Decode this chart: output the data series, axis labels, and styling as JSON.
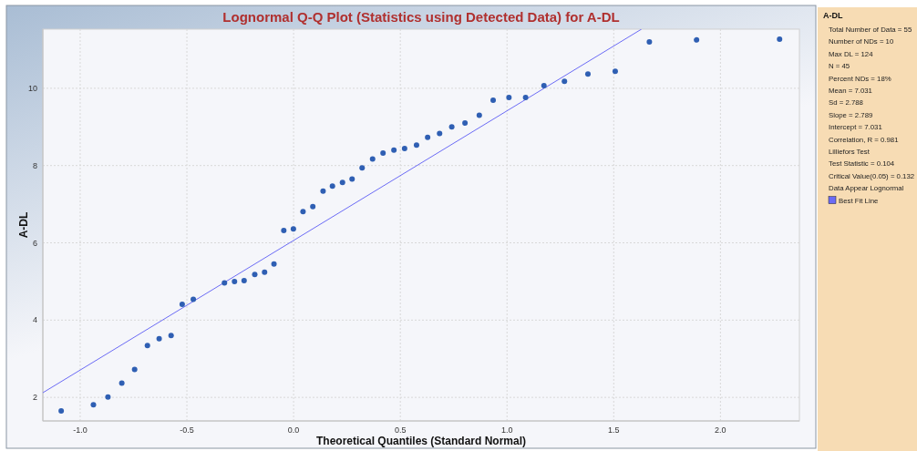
{
  "chart_data": {
    "type": "scatter",
    "title": "Lognormal Q-Q Plot (Statistics using Detected Data) for A-DL",
    "xlabel": "Theoretical Quantiles (Standard Normal)",
    "ylabel": "A-DL",
    "legend_title": "A-DL",
    "annotations": [
      "Total Number of Data = 55",
      "Number of NDs = 10",
      "Max DL = 124",
      "N = 45",
      "Percent NDs = 18%",
      "Mean = 7.031",
      "Sd = 2.788",
      "Slope = 2.789",
      "Intercept = 7.031",
      "Correlation, R = 0.981",
      "Lilliefors Test",
      "Test Statistic = 0.104",
      "Critical Value(0.05) = 0.132",
      "Data Appear Lognormal"
    ],
    "xlim": [
      -1.175,
      2.37
    ],
    "ylim": [
      1.39,
      11.53
    ],
    "xticks": [
      {
        "value": -1,
        "label": "-1.0"
      },
      {
        "value": -0.5,
        "label": "-0.5"
      },
      {
        "value": 0,
        "label": "0.0"
      },
      {
        "value": 0.5,
        "label": "0.5"
      },
      {
        "value": 1,
        "label": "1.0"
      },
      {
        "value": 1.5,
        "label": "1.5"
      },
      {
        "value": 2,
        "label": "2.0"
      }
    ],
    "yticks": [
      2,
      4,
      6,
      8,
      10
    ],
    "grid": true,
    "legend": "right",
    "series": [
      {
        "marker": "circle",
        "color": "#2f5fb3",
        "x": [
          -1.089,
          -0.938,
          -0.87,
          -0.805,
          -0.745,
          -0.685,
          -0.63,
          -0.574,
          -0.522,
          -0.47,
          -0.324,
          -0.277,
          -0.232,
          -0.182,
          -0.136,
          -0.092,
          -0.046,
          -0.001,
          0.044,
          0.09,
          0.138,
          0.182,
          0.229,
          0.274,
          0.321,
          0.37,
          0.419,
          0.47,
          0.52,
          0.576,
          0.628,
          0.684,
          0.741,
          0.803,
          0.87,
          0.935,
          1.009,
          1.087,
          1.173,
          1.269,
          1.379,
          1.507,
          1.667,
          1.888,
          2.277
        ],
        "values": [
          1.65,
          1.81,
          2.01,
          2.37,
          2.72,
          3.34,
          3.52,
          3.6,
          4.41,
          4.54,
          4.96,
          5.0,
          5.02,
          5.18,
          5.24,
          5.45,
          6.32,
          6.36,
          6.81,
          6.94,
          7.34,
          7.47,
          7.56,
          7.65,
          7.94,
          8.17,
          8.32,
          8.4,
          8.44,
          8.53,
          8.73,
          8.83,
          9.0,
          9.1,
          9.3,
          9.69,
          9.76,
          9.76,
          10.07,
          10.18,
          10.37,
          10.44,
          11.2,
          11.25,
          11.27
        ]
      },
      {
        "type": "line",
        "marker": "none",
        "name": "Best Fit Line",
        "color": "#6b6bf5",
        "x": [
          -1.175,
          1.63
        ],
        "values": [
          2.12,
          11.53
        ]
      }
    ]
  }
}
